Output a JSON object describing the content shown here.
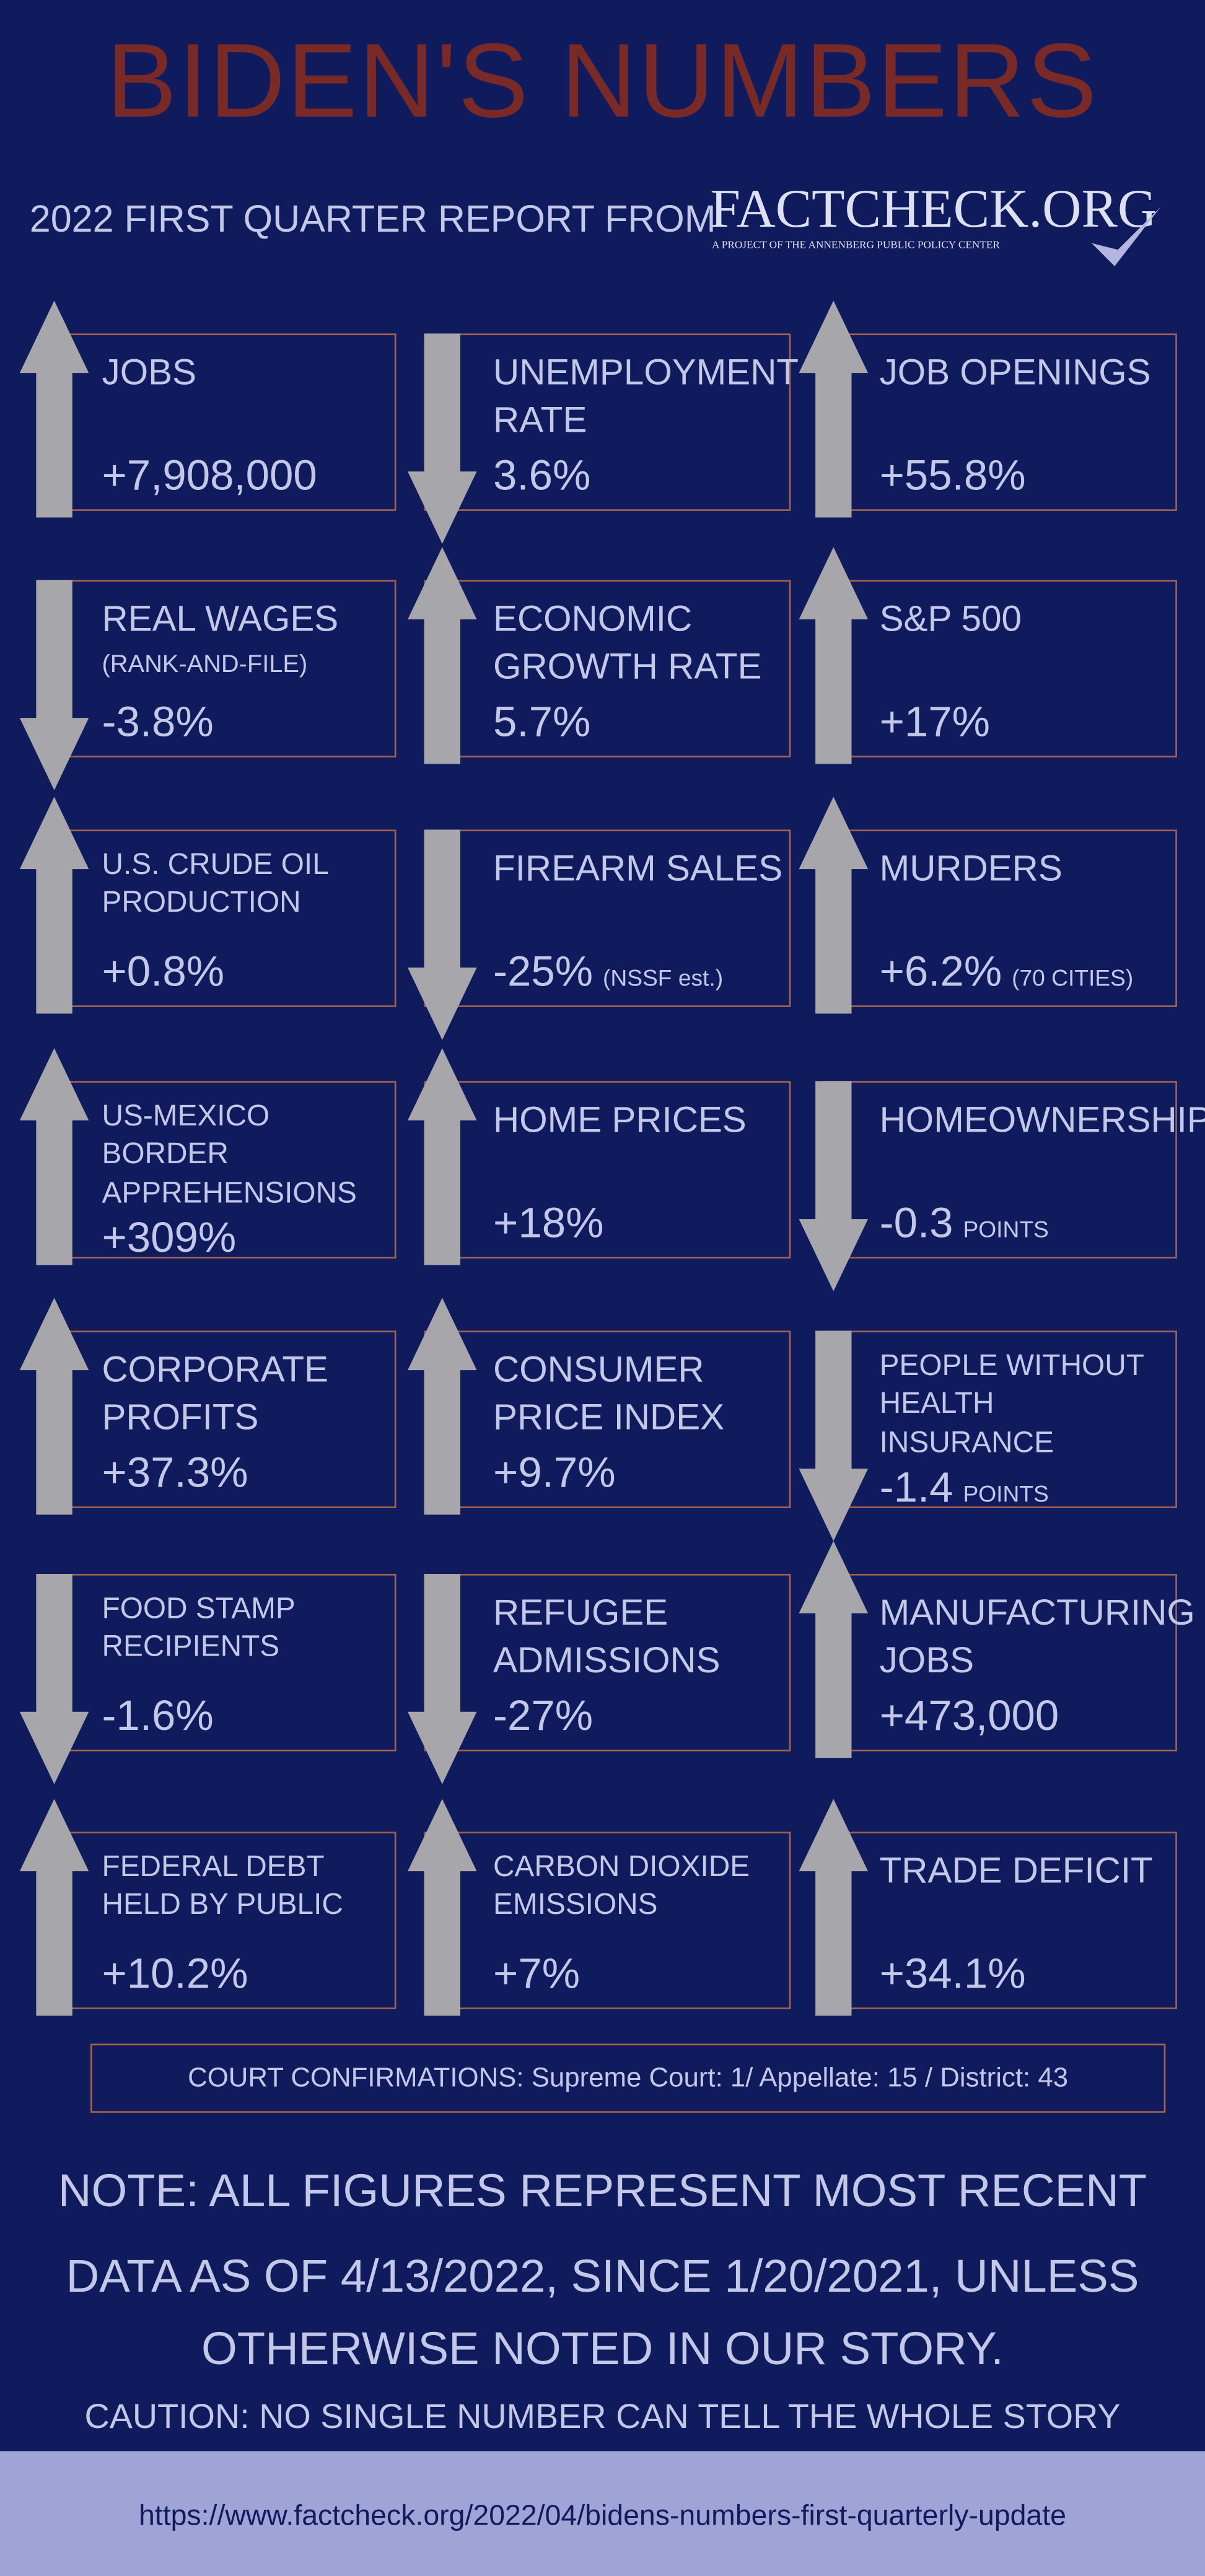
{
  "header": {
    "title": "BIDEN'S NUMBERS",
    "subtitle": "2022 FIRST QUARTER REPORT FROM",
    "logo": "FACTCHECK.ORG",
    "logo_tagline": "A PROJECT OF THE ANNENBERG PUBLIC POLICY CENTER"
  },
  "cards": [
    {
      "label": "JOBS",
      "value": "+7,908,000",
      "direction": "up"
    },
    {
      "label": "UNEMPLOYMENT RATE",
      "value": "3.6%",
      "direction": "down"
    },
    {
      "label": "JOB OPENINGS",
      "value": "+55.8%",
      "direction": "up"
    },
    {
      "label": "REAL WAGES",
      "sublabel": "(RANK-AND-FILE)",
      "value": "-3.8%",
      "direction": "down"
    },
    {
      "label": "ECONOMIC GROWTH RATE",
      "value": "5.7%",
      "direction": "up"
    },
    {
      "label": "S&P 500",
      "value": "+17%",
      "direction": "up"
    },
    {
      "label": "U.S. CRUDE OIL PRODUCTION",
      "value": "+0.8%",
      "direction": "up"
    },
    {
      "label": "FIREARM SALES",
      "value": "-25%",
      "note": "(NSSF est.)",
      "direction": "down"
    },
    {
      "label": "MURDERS",
      "value": "+6.2%",
      "note": "(70 CITIES)",
      "direction": "up"
    },
    {
      "label": "US-MEXICO BORDER APPREHENSIONS",
      "value": "+309%",
      "direction": "up"
    },
    {
      "label": "HOME PRICES",
      "value": "+18%",
      "direction": "up"
    },
    {
      "label": "HOMEOWNERSHIP",
      "value": "-0.3",
      "note": "POINTS",
      "direction": "down"
    },
    {
      "label": "CORPORATE PROFITS",
      "value": "+37.3%",
      "direction": "up"
    },
    {
      "label": "CONSUMER PRICE INDEX",
      "value": "+9.7%",
      "direction": "up"
    },
    {
      "label": "PEOPLE WITHOUT HEALTH INSURANCE",
      "value": "-1.4",
      "note": "POINTS",
      "direction": "down"
    },
    {
      "label": "FOOD STAMP RECIPIENTS",
      "value": "-1.6%",
      "direction": "down"
    },
    {
      "label": "REFUGEE ADMISSIONS",
      "value": "-27%",
      "direction": "down"
    },
    {
      "label": "MANUFACTURING JOBS",
      "value": "+473,000",
      "direction": "up"
    },
    {
      "label": "FEDERAL DEBT HELD BY PUBLIC",
      "value": "+10.2%",
      "direction": "up"
    },
    {
      "label": "CARBON DIOXIDE EMISSIONS",
      "value": "+7%",
      "direction": "up"
    },
    {
      "label": "TRADE DEFICIT",
      "value": "+34.1%",
      "direction": "up"
    }
  ],
  "court": "COURT CONFIRMATIONS:  Supreme Court: 1/ Appellate: 15 / District: 43",
  "note_lines": [
    "NOTE:  ALL FIGURES REPRESENT MOST RECENT",
    "DATA AS OF 4/13/2022, SINCE 1/20/2021, UNLESS",
    "OTHERWISE NOTED IN OUR STORY."
  ],
  "caution": "CAUTION: NO SINGLE NUMBER CAN TELL THE WHOLE STORY",
  "footer": {
    "url": "https://www.factcheck.org/2022/04/bidens-numbers-first-quarterly-update"
  }
}
